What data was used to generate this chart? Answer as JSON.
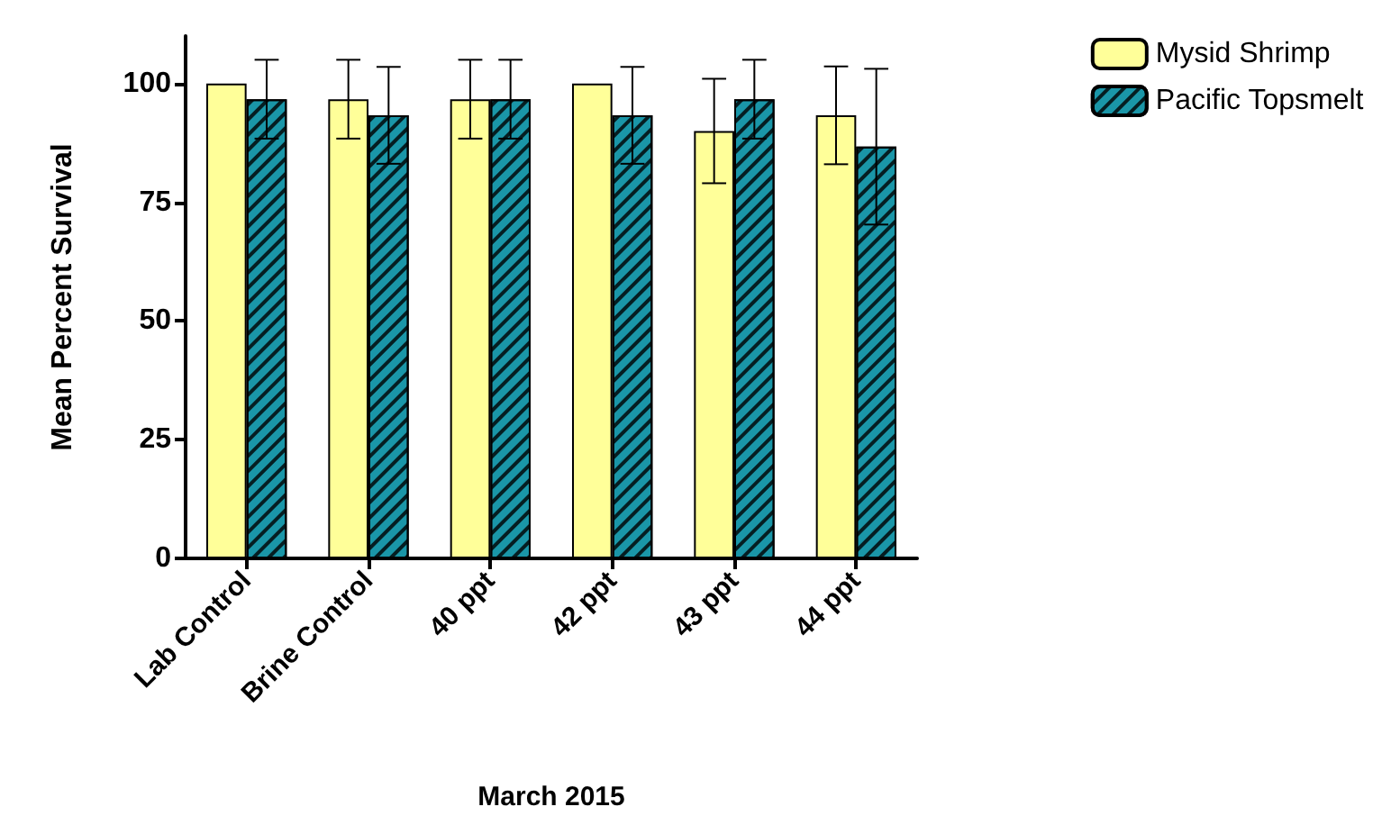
{
  "chart_data": {
    "type": "bar",
    "xlabel": "March 2015",
    "ylabel": "Mean Percent Survival",
    "categories": [
      "Lab Control",
      "Brine Control",
      "40 ppt",
      "42 ppt",
      "43 ppt",
      "44 ppt"
    ],
    "series": [
      {
        "name": "Mysid Shrimp",
        "color": "#ffff99",
        "values": [
          100,
          96.7,
          96.7,
          100,
          90,
          93.3
        ],
        "errors": [
          null,
          8.3,
          8.3,
          null,
          11,
          10.3
        ]
      },
      {
        "name": "Pacific Topsmelt",
        "color": "#1a96a8",
        "values": [
          96.7,
          93.3,
          96.7,
          93.3,
          96.7,
          86.7
        ],
        "errors": [
          8.3,
          10.2,
          8.3,
          10.2,
          8.3,
          16.4
        ]
      }
    ],
    "ylim": [
      0,
      110
    ],
    "yticks": [
      0,
      25,
      50,
      75,
      100
    ],
    "grid": false,
    "legend": "top right"
  }
}
